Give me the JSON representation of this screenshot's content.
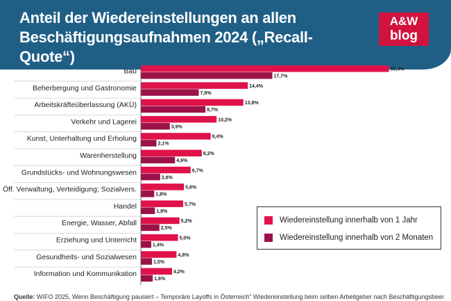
{
  "header": {
    "title_line1": "Anteil der Wiedereinstellungen an allen",
    "title_line2": "Beschäftigungsaufnahmen 2024 („Recall-Quote“)",
    "logo_line1": "A&W",
    "logo_line2": "blog"
  },
  "source": {
    "label": "Quelle:",
    "text": " WIFO 2025, Wenn Beschäftigung pausiert – Temporäre Layoffs in Österreich\" Wiedereinstellung beim selben Arbeitgeber nach Beschäftigungsbeendigung"
  },
  "colors": {
    "series1": "#e0124a",
    "series2": "#9b1248",
    "header": "#1f5f86"
  },
  "chart_data": {
    "type": "bar",
    "orientation": "horizontal",
    "categories": [
      "Bau",
      "Beherbergung und Gastronomie",
      "Arbeitskräfteüberlassung (AKÜ)",
      "Verkehr und Lagerei",
      "Kunst, Unterhaltung und Erholung",
      "Warenherstellung",
      "Grundstücks- und Wohnungswesen",
      "Öff. Verwaltung, Verteidigung; Sozialvers.",
      "Handel",
      "Energie, Wasser, Abfall",
      "Erziehung und Unterricht",
      "Gesundheits- und Sozialwesen",
      "Information und Kommunikation"
    ],
    "series": [
      {
        "name": "Wiedereinstellung innerhalb von 1 Jahr",
        "values": [
          33.4,
          14.4,
          13.8,
          10.2,
          9.4,
          8.2,
          6.7,
          5.8,
          5.7,
          5.2,
          5.0,
          4.8,
          4.2
        ],
        "labels": [
          "33,4%",
          "14,4%",
          "13,8%",
          "10,2%",
          "9,4%",
          "8,2%",
          "6,7%",
          "5,8%",
          "5,7%",
          "5,2%",
          "5,0%",
          "4,8%",
          "4,2%"
        ]
      },
      {
        "name": "Wiedereinstellung innerhalb von 2 Monaten",
        "values": [
          17.7,
          7.8,
          8.7,
          3.9,
          2.1,
          4.6,
          2.6,
          1.8,
          1.9,
          2.5,
          1.4,
          1.5,
          1.6
        ],
        "labels": [
          "17,7%",
          "7,8%",
          "8,7%",
          "3,9%",
          "2,1%",
          "4,6%",
          "2,6%",
          "1,8%",
          "1,9%",
          "2,5%",
          "1,4%",
          "1,5%",
          "1,6%"
        ]
      }
    ],
    "xlim": [
      0,
      34
    ],
    "grid": false,
    "legend_position": "bottom-right"
  }
}
